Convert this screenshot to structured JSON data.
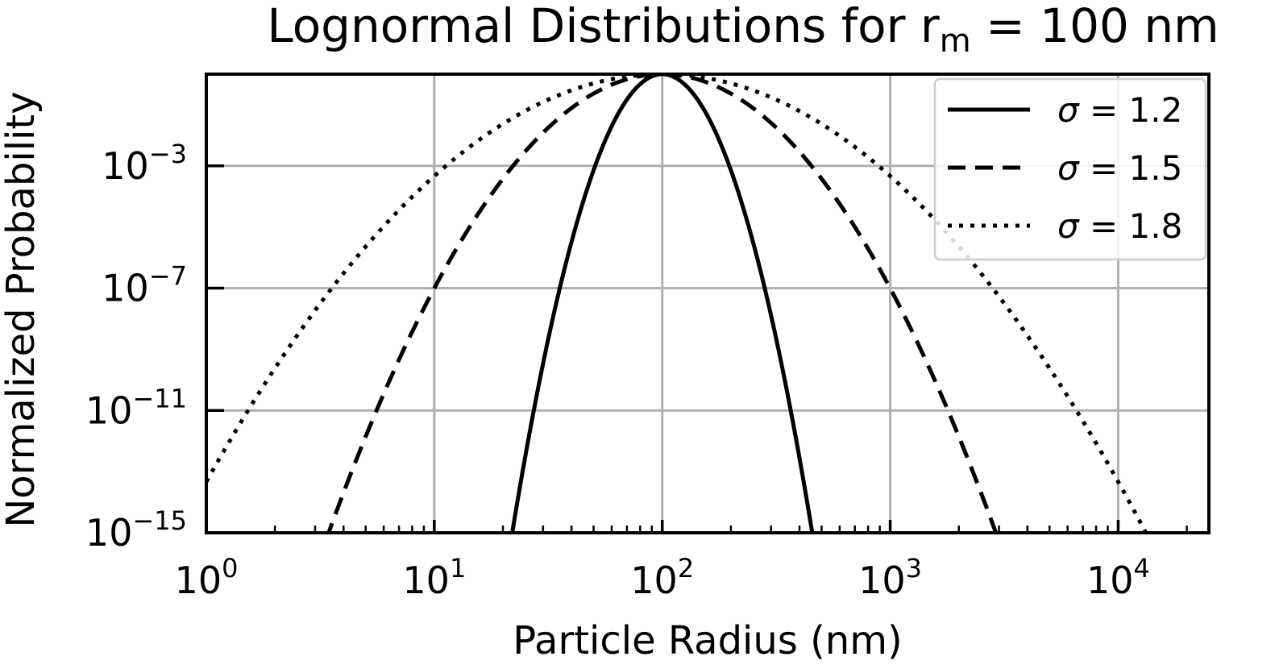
{
  "chart_data": {
    "type": "line",
    "title": {
      "prefix": "Lognormal Distributions for r",
      "subscript": "m",
      "suffix": " = 100 nm"
    },
    "xlabel": "Particle Radius (nm)",
    "ylabel": "Normalized Probability",
    "xscale": "log",
    "yscale": "log",
    "xlim": [
      1,
      25000
    ],
    "ylim": [
      1e-15,
      1
    ],
    "x_ticks": [
      {
        "base": "10",
        "exp": "0",
        "value": 1
      },
      {
        "base": "10",
        "exp": "1",
        "value": 10
      },
      {
        "base": "10",
        "exp": "2",
        "value": 100
      },
      {
        "base": "10",
        "exp": "3",
        "value": 1000
      },
      {
        "base": "10",
        "exp": "4",
        "value": 10000
      }
    ],
    "y_ticks": [
      {
        "base": "10",
        "exp": "−3",
        "value": 0.001
      },
      {
        "base": "10",
        "exp": "−7",
        "value": 1e-07
      },
      {
        "base": "10",
        "exp": "−11",
        "value": 1e-11
      },
      {
        "base": "10",
        "exp": "−15",
        "value": 1e-15
      }
    ],
    "grid": true,
    "legend_position": "top-right",
    "median_radius_nm": 100,
    "series": [
      {
        "label": "σ = 1.2",
        "sigma": 1.2,
        "line_style": "solid"
      },
      {
        "label": "σ = 1.5",
        "sigma": 1.5,
        "line_style": "dashed"
      },
      {
        "label": "σ = 1.8",
        "sigma": 1.8,
        "line_style": "dotted"
      }
    ],
    "colors": {
      "line": "#000000",
      "grid": "#b0b0b0",
      "background": "#ffffff"
    }
  }
}
